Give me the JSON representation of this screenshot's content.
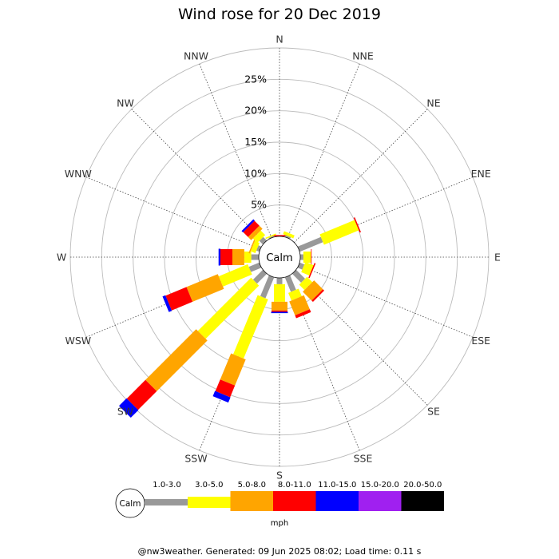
{
  "title": "Wind rose for 20 Dec 2019",
  "footer": "@nw3weather. Generated: 09 Jun 2025 08:02; Load time: 0.11 s",
  "calm_label": "Calm",
  "unit_label": "mph",
  "chart_data": {
    "type": "wind-rose",
    "title": "Wind rose for 20 Dec 2019",
    "directions": [
      "N",
      "NNE",
      "NE",
      "ENE",
      "E",
      "ESE",
      "SE",
      "SSE",
      "S",
      "SSW",
      "SW",
      "WSW",
      "W",
      "WNW",
      "NW",
      "NNW"
    ],
    "ring_values": [
      5,
      10,
      15,
      20,
      25
    ],
    "ring_labels": [
      "5%",
      "10%",
      "15%",
      "20%",
      "25%"
    ],
    "rmax_percent": 30,
    "grid": true,
    "legend_position": "bottom",
    "speed_bins": [
      {
        "label": "1.0-3.0",
        "color": "#999999"
      },
      {
        "label": "3.0-5.0",
        "color": "#ffff00"
      },
      {
        "label": "5.0-8.0",
        "color": "#ffa500"
      },
      {
        "label": "8.0-11.0",
        "color": "#ff0000"
      },
      {
        "label": "11.0-15.0",
        "color": "#0000ff"
      },
      {
        "label": "15.0-20.0",
        "color": "#a020f0"
      },
      {
        "label": "20.0-50.0",
        "color": "#000000"
      }
    ],
    "cumulative_percent": {
      "N": [
        0.0,
        0.0,
        0.0,
        0.2,
        0.0,
        0,
        0
      ],
      "NNE": [
        0.3,
        0.8,
        0.8,
        0.8,
        0.8,
        0,
        0
      ],
      "NE": [
        0.0,
        0.0,
        0.0,
        0.0,
        0.0,
        0,
        0
      ],
      "ENE": [
        4.0,
        10.0,
        10.0,
        10.2,
        10.2,
        0,
        0
      ],
      "E": [
        0.5,
        1.7,
        1.7,
        1.8,
        1.8,
        0,
        0
      ],
      "ESE": [
        0.8,
        2.2,
        2.2,
        2.4,
        2.4,
        0,
        0
      ],
      "SE": [
        2.0,
        3.2,
        5.2,
        5.5,
        5.5,
        0,
        0
      ],
      "SSE": [
        2.5,
        3.8,
        6.2,
        6.7,
        6.7,
        0,
        0
      ],
      "S": [
        1.0,
        3.8,
        5.2,
        5.4,
        5.6,
        0,
        0
      ],
      "SSW": [
        3.6,
        13.8,
        18.3,
        20.3,
        21.2,
        0,
        0
      ],
      "SW": [
        2.2,
        14.2,
        25.6,
        29.8,
        31.5,
        0,
        0
      ],
      "WSW": [
        1.8,
        6.8,
        12.2,
        15.8,
        16.3,
        0,
        0
      ],
      "W": [
        1.2,
        2.3,
        4.2,
        6.1,
        6.4,
        0,
        0
      ],
      "WNW": [
        0.5,
        1.3,
        1.5,
        1.5,
        1.5,
        0,
        0
      ],
      "NW": [
        0.8,
        1.8,
        2.5,
        3.6,
        3.9,
        0,
        0
      ],
      "NNW": [
        0.2,
        0.4,
        0.4,
        0.4,
        0.4,
        0,
        0
      ]
    }
  }
}
